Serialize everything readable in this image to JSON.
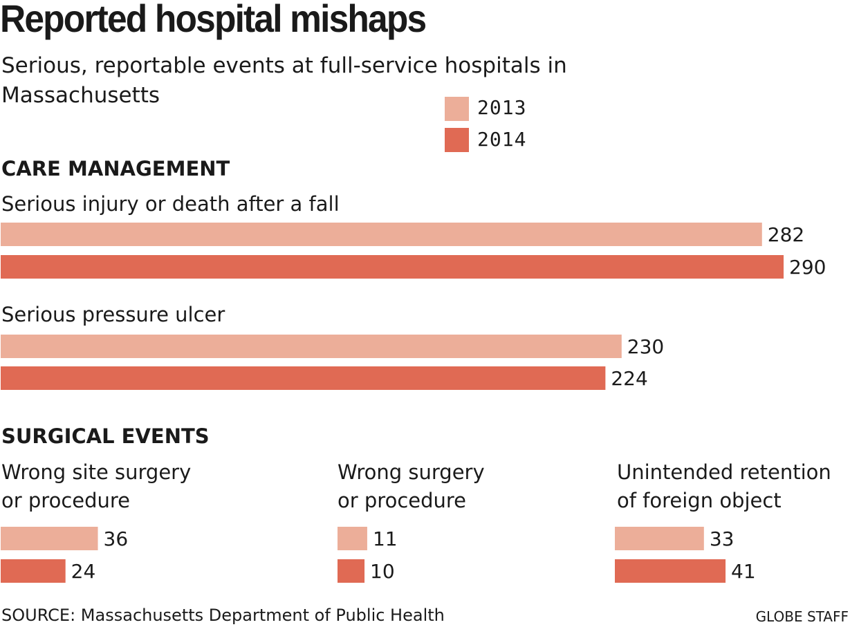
{
  "title": "Reported hospital mishaps",
  "subtitle": "Serious, reportable events at full-service hospitals in Massachusetts",
  "legend": [
    {
      "label": "2013",
      "color": "#ecae99"
    },
    {
      "label": "2014",
      "color": "#e06a54"
    }
  ],
  "sections": {
    "care": "CARE MANAGEMENT",
    "surgical": "SURGICAL EVENTS"
  },
  "categories": {
    "fall": "Serious injury or death after a fall",
    "ulcer": "Serious pressure ulcer",
    "wrong_site": "Wrong site surgery\nor procedure",
    "wrong_surgery": "Wrong surgery\nor procedure",
    "foreign_object": "Unintended retention\nof foreign object"
  },
  "source": "SOURCE: Massachusetts Department of Public Health",
  "credit": "GLOBE STAFF",
  "chart_data": [
    {
      "type": "bar",
      "orientation": "horizontal",
      "section": "CARE MANAGEMENT",
      "categories": [
        "Serious injury or death after a fall",
        "Serious pressure ulcer"
      ],
      "series": [
        {
          "name": "2013",
          "values": [
            282,
            230
          ]
        },
        {
          "name": "2014",
          "values": [
            290,
            224
          ]
        }
      ]
    },
    {
      "type": "bar",
      "orientation": "horizontal",
      "section": "SURGICAL EVENTS",
      "categories": [
        "Wrong site surgery or procedure",
        "Wrong surgery or procedure",
        "Unintended retention of foreign object"
      ],
      "series": [
        {
          "name": "2013",
          "values": [
            36,
            11,
            33
          ]
        },
        {
          "name": "2014",
          "values": [
            24,
            10,
            41
          ]
        }
      ]
    }
  ]
}
